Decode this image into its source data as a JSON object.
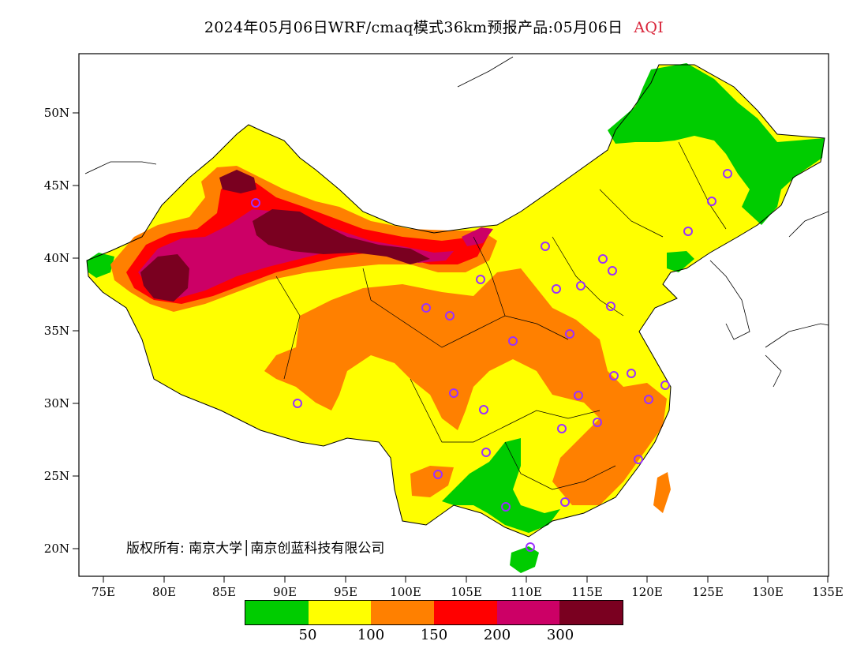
{
  "title": {
    "main": "2024年05月06日WRF/cmaq模式36km预报产品:05月06日",
    "variable": "AQI",
    "variable_color": "#d9253a"
  },
  "axes": {
    "lat_labels": [
      "50N",
      "45N",
      "40N",
      "35N",
      "30N",
      "25N",
      "20N"
    ],
    "lon_labels": [
      "75E",
      "80E",
      "85E",
      "90E",
      "95E",
      "100E",
      "105E",
      "110E",
      "115E",
      "120E",
      "125E",
      "130E",
      "135E"
    ],
    "lon_range": [
      73,
      135
    ],
    "lat_range": [
      18,
      54
    ]
  },
  "copyright": "版权所有: 南京大学│南京创蓝科技有限公司",
  "legend": {
    "colors": [
      "#00cc00",
      "#ffff00",
      "#ff8000",
      "#ff0000",
      "#cc0066",
      "#7a0020"
    ],
    "labels": [
      "50",
      "100",
      "150",
      "200",
      "300"
    ]
  },
  "palette": {
    "good": "#00cc00",
    "moderate": "#ffff00",
    "sensitive": "#ff8000",
    "unhealthy": "#ff0000",
    "very_unhealthy": "#cc0066",
    "hazardous": "#7a0020",
    "station": "#9b30ff"
  },
  "icons": {
    "station_marker": "circle-marker-icon"
  }
}
